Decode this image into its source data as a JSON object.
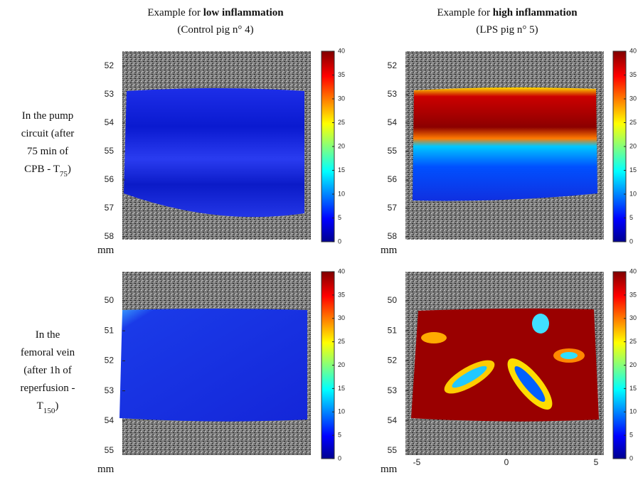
{
  "columns": [
    {
      "prefix": "Example for ",
      "bold": "low inflammation",
      "sub": "(Control pig n° 4)"
    },
    {
      "prefix": "Example for ",
      "bold": "high inflammation",
      "sub": "(LPS pig n° 5)"
    }
  ],
  "rows": [
    {
      "lines": [
        "In the pump",
        "circuit (after",
        "75 min of"
      ],
      "last": {
        "text": "CPB - T",
        "sub": "75",
        "tail": ")"
      }
    },
    {
      "lines": [
        "In the",
        "femoral vein",
        "(after 1h of",
        "reperfusion -"
      ],
      "last": {
        "text": "T",
        "sub": "150",
        "tail": ")"
      }
    }
  ],
  "panels": [
    {
      "yticks": [
        52,
        53,
        54,
        55,
        56,
        57,
        58
      ],
      "unit": "mm",
      "cticks": [
        0,
        5,
        10,
        15,
        20,
        25,
        30,
        35,
        40
      ]
    },
    {
      "yticks": [
        52,
        53,
        54,
        55,
        56,
        57,
        58
      ],
      "unit": "mm",
      "cticks": [
        0,
        5,
        10,
        15,
        20,
        25,
        30,
        35,
        40
      ]
    },
    {
      "yticks": [
        50,
        51,
        52,
        53,
        54,
        55
      ],
      "unit": "mm",
      "cticks": [
        0,
        5,
        10,
        15,
        20,
        25,
        30,
        35,
        40
      ]
    },
    {
      "yticks": [
        50,
        51,
        52,
        53,
        54,
        55
      ],
      "unit": "mm",
      "cticks": [
        0,
        5,
        10,
        15,
        20,
        25,
        30,
        35,
        40
      ],
      "xticks": [
        -5,
        0,
        5
      ]
    }
  ]
}
